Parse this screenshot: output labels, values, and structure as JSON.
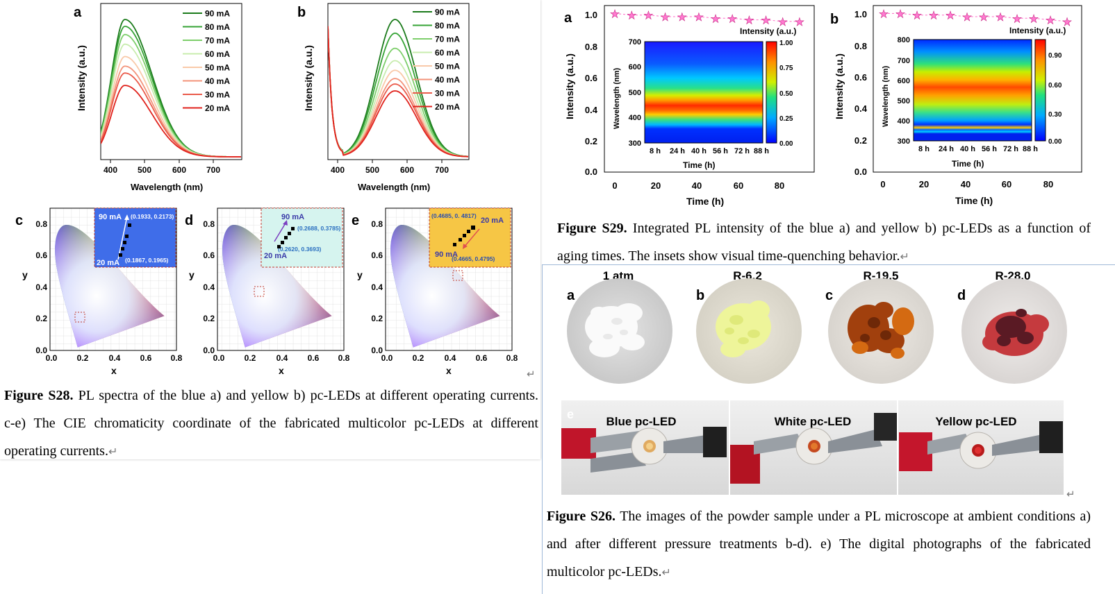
{
  "left_top_panels": {
    "panel_a": {
      "letter": "a",
      "ylabel": "Intensity (a.u.)",
      "xlabel": "Wavelength (nm)",
      "xticks": [
        "400",
        "500",
        "600",
        "700"
      ]
    },
    "panel_b": {
      "letter": "b",
      "ylabel": "Intensity (a.u.)",
      "xlabel": "Wavelength (nm)",
      "xticks": [
        "400",
        "500",
        "600",
        "700"
      ]
    },
    "legend": [
      "90 mA",
      "80 mA",
      "70 mA",
      "60 mA",
      "50 mA",
      "40 mA",
      "30 mA",
      "20 mA"
    ],
    "legend_colors": [
      "#1a7a1a",
      "#35a335",
      "#7dce6a",
      "#c8ecae",
      "#f9c9a8",
      "#f3937a",
      "#ea5a4a",
      "#e0221c"
    ]
  },
  "chart_data": [
    {
      "type": "line",
      "title": "a",
      "xlabel": "Wavelength (nm)",
      "ylabel": "Intensity (a.u.)",
      "xlim": [
        370,
        780
      ],
      "series": [
        {
          "name": "90 mA",
          "peak_x": 440,
          "peak_y": 1.0
        },
        {
          "name": "80 mA",
          "peak_x": 440,
          "peak_y": 0.95
        },
        {
          "name": "70 mA",
          "peak_x": 440,
          "peak_y": 0.89
        },
        {
          "name": "60 mA",
          "peak_x": 440,
          "peak_y": 0.82
        },
        {
          "name": "50 mA",
          "peak_x": 440,
          "peak_y": 0.73
        },
        {
          "name": "40 mA",
          "peak_x": 440,
          "peak_y": 0.66
        },
        {
          "name": "30 mA",
          "peak_x": 440,
          "peak_y": 0.61
        },
        {
          "name": "20 mA",
          "peak_x": 440,
          "peak_y": 0.52
        }
      ]
    },
    {
      "type": "line",
      "title": "b",
      "xlabel": "Wavelength (nm)",
      "ylabel": "Intensity (a.u.)",
      "xlim": [
        370,
        780
      ],
      "series": [
        {
          "name": "90 mA",
          "peak_x": 565,
          "peak_y": 1.0
        },
        {
          "name": "80 mA",
          "peak_x": 565,
          "peak_y": 0.9
        },
        {
          "name": "70 mA",
          "peak_x": 565,
          "peak_y": 0.79
        },
        {
          "name": "60 mA",
          "peak_x": 565,
          "peak_y": 0.7
        },
        {
          "name": "50 mA",
          "peak_x": 565,
          "peak_y": 0.63
        },
        {
          "name": "40 mA",
          "peak_x": 565,
          "peak_y": 0.57
        },
        {
          "name": "30 mA",
          "peak_x": 565,
          "peak_y": 0.53
        },
        {
          "name": "20 mA",
          "peak_x": 565,
          "peak_y": 0.48
        }
      ]
    },
    {
      "type": "scatter",
      "title": "c",
      "xlabel": "x",
      "ylabel": "y",
      "points": [
        {
          "label": "90 mA",
          "x": 0.1933,
          "y": 0.2173
        },
        {
          "label": "20 mA",
          "x": 0.1867,
          "y": 0.1965
        }
      ]
    },
    {
      "type": "scatter",
      "title": "d",
      "xlabel": "x",
      "ylabel": "y",
      "points": [
        {
          "label": "90 mA",
          "x": 0.2688,
          "y": 0.3785
        },
        {
          "label": "20 mA",
          "x": 0.262,
          "y": 0.3693
        }
      ]
    },
    {
      "type": "scatter",
      "title": "e",
      "xlabel": "x",
      "ylabel": "y",
      "points": [
        {
          "label": "20 mA",
          "x": 0.4685,
          "y": 0.4817
        },
        {
          "label": "90 mA",
          "x": 0.4665,
          "y": 0.4795
        }
      ]
    },
    {
      "type": "line",
      "title": "a",
      "xlabel": "Time (h)",
      "ylabel": "Intensity (a.u.)",
      "xlim": [
        -5,
        95
      ],
      "ylim": [
        0,
        1.05
      ],
      "series": [
        {
          "name": "",
          "x": [
            0,
            8,
            16,
            24,
            32,
            40,
            48,
            56,
            64,
            72,
            80,
            88
          ],
          "y": [
            1.0,
            0.99,
            0.99,
            0.98,
            0.98,
            0.98,
            0.97,
            0.97,
            0.96,
            0.96,
            0.95,
            0.95
          ]
        }
      ]
    },
    {
      "type": "line",
      "title": "b",
      "xlabel": "Time (h)",
      "ylabel": "Intensity (a.u.)",
      "xlim": [
        -5,
        95
      ],
      "ylim": [
        0,
        1.05
      ],
      "series": [
        {
          "name": "",
          "x": [
            0,
            8,
            16,
            24,
            32,
            40,
            48,
            56,
            64,
            72,
            80,
            88
          ],
          "y": [
            1.0,
            1.0,
            0.99,
            0.99,
            0.99,
            0.98,
            0.98,
            0.98,
            0.97,
            0.97,
            0.96,
            0.95
          ]
        }
      ]
    }
  ],
  "cie_panels": {
    "c": {
      "letter": "c",
      "xlabel": "x",
      "ylabel": "y",
      "yticks": [
        "0.0",
        "0.2",
        "0.4",
        "0.6",
        "0.8"
      ],
      "xticks": [
        "0.0",
        "0.2",
        "0.4",
        "0.6",
        "0.8"
      ],
      "inset_top_label": "90 mA",
      "inset_bottom_label": "20 mA",
      "coord_top": "(0.1933, 0.2173)",
      "coord_bottom": "(0.1867, 0.1965)"
    },
    "d": {
      "letter": "d",
      "xlabel": "x",
      "ylabel": "y",
      "yticks": [
        "0.0",
        "0.2",
        "0.4",
        "0.6",
        "0.8"
      ],
      "xticks": [
        "0.0",
        "0.2",
        "0.4",
        "0.6",
        "0.8"
      ],
      "inset_top_label": "90 mA",
      "inset_bottom_label": "20 mA",
      "coord_top": "(0.2688, 0.3785)",
      "coord_bottom": "(0.2620, 0.3693)"
    },
    "e": {
      "letter": "e",
      "xlabel": "x",
      "ylabel": "y",
      "yticks": [
        "0.0",
        "0.2",
        "0.4",
        "0.6",
        "0.8"
      ],
      "xticks": [
        "0.0",
        "0.2",
        "0.4",
        "0.6",
        "0.8"
      ],
      "inset_top_label": "20 mA",
      "inset_bottom_label": "90 mA",
      "coord_top": "(0.4685, 0. 4817)",
      "coord_bottom": "(0.4665, 0.4795)"
    }
  },
  "caption_s28": {
    "label": "Figure S28.",
    "line1": "PL spectra of the blue a) and yellow b) pc-LEDs at different operating currents.",
    "line2": "c-e) The CIE chromaticity coordinate of the fabricated multicolor pc-LEDs at different",
    "line3": "operating currents."
  },
  "aging_panels": {
    "a": {
      "letter": "a",
      "ylabel": "Intensity (a.u.)",
      "xlabel": "Time (h)",
      "yticks": [
        "0.0",
        "0.2",
        "0.4",
        "0.6",
        "0.8",
        "1.0"
      ],
      "xticks": [
        "0",
        "20",
        "40",
        "60",
        "80"
      ],
      "inset_title": "Intensity (a.u.)",
      "inset_ylabel": "Wavelength (nm)",
      "inset_xlabel": "Time (h)",
      "inset_yticks": [
        "300",
        "400",
        "500",
        "600",
        "700"
      ],
      "inset_xticks": [
        "8 h",
        "24 h",
        "40 h",
        "56 h",
        "72 h",
        "88 h"
      ],
      "colorbar_ticks": [
        "0.00",
        "0.25",
        "0.50",
        "0.75",
        "1.00"
      ]
    },
    "b": {
      "letter": "b",
      "ylabel": "Intensity (a.u.)",
      "xlabel": "Time (h)",
      "yticks": [
        "0.0",
        "0.2",
        "0.4",
        "0.6",
        "0.8",
        "1.0"
      ],
      "xticks": [
        "0",
        "20",
        "40",
        "60",
        "80"
      ],
      "inset_title": "Intensity (a.u.)",
      "inset_ylabel": "Wavelength (nm)",
      "inset_xlabel": "Time (h)",
      "inset_yticks": [
        "300",
        "400",
        "500",
        "600",
        "700",
        "800"
      ],
      "inset_xticks": [
        "8 h",
        "24 h",
        "40 h",
        "56 h",
        "72 h",
        "88 h"
      ],
      "colorbar_ticks": [
        "0.00",
        "0.30",
        "0.60",
        "0.90"
      ]
    }
  },
  "caption_s29": {
    "label": "Figure S29.",
    "line1": "Integrated PL intensity of the blue a) and yellow b) pc-LEDs as a function of",
    "line2": "aging times. The insets show visual time-quenching behavior."
  },
  "powder_samples": [
    {
      "letter": "a",
      "title": "1 atm"
    },
    {
      "letter": "b",
      "title": "R-6.2"
    },
    {
      "letter": "c",
      "title": "R-19.5"
    },
    {
      "letter": "d",
      "title": "R-28.0"
    }
  ],
  "led_photos": {
    "letter": "e",
    "labels": [
      "Blue pc-LED",
      "White pc-LED",
      "Yellow pc-LED"
    ]
  },
  "caption_s26": {
    "label": "Figure S26.",
    "line1": "The images of the powder sample under a PL microscope at ambient conditions a)",
    "line2": "and after different pressure treatments b-d). e) The digital photographs of the fabricated",
    "line3": "multicolor pc-LEDs."
  },
  "paragraph_mark": "↵",
  "colors": {
    "dark_green": "#1a7a1a",
    "red": "#e0221c",
    "star_pink": "#ff69c8",
    "inset_blue": "#3d6df0",
    "inset_cyan": "#d9f5f0",
    "inset_yellow": "#f7c843"
  }
}
